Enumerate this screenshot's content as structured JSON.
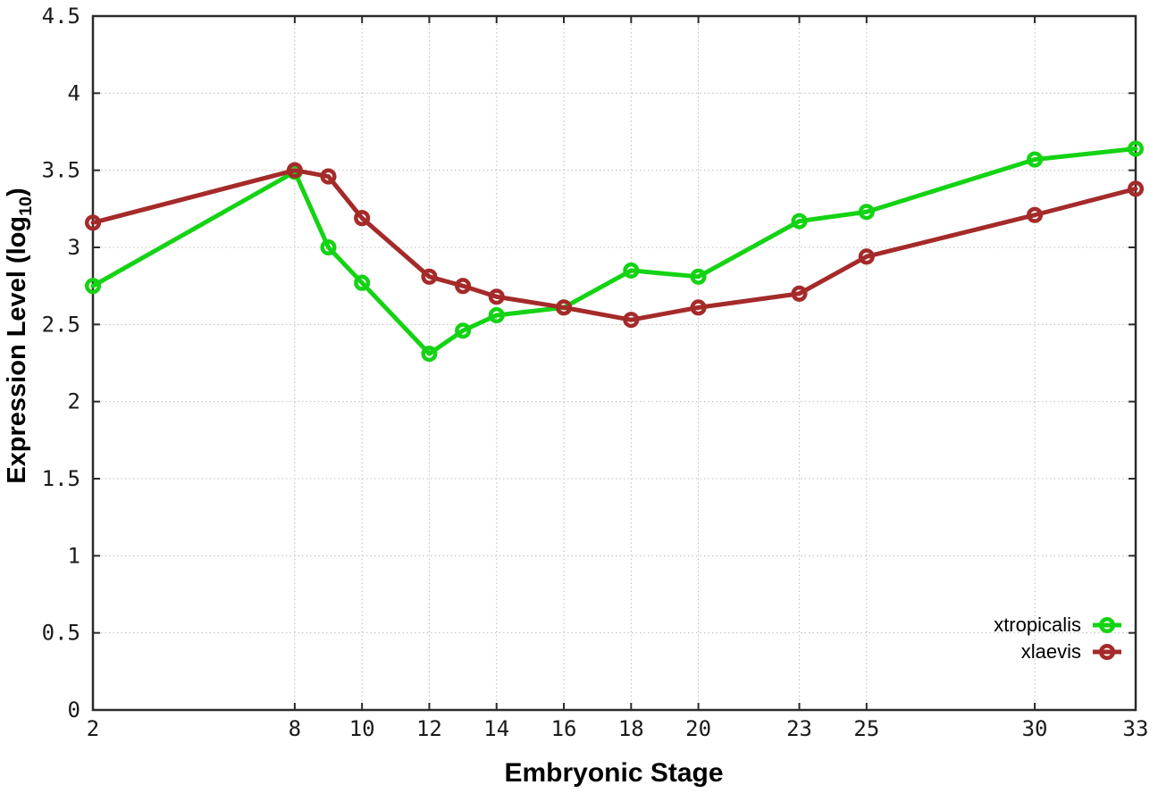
{
  "figure": {
    "background": "#ffffff",
    "border_color": "#2b2b2b",
    "grid_color": "#bcbcbc",
    "tick_label_color": "#1a1a1a"
  },
  "chart_data": {
    "type": "line",
    "xlabel": "Embryonic Stage",
    "ylabel": "Expression Level (log10)",
    "ylabel_parts": {
      "pre": "Expression Level (log",
      "sub": "10",
      "post": ")"
    },
    "x": [
      2,
      8,
      9,
      10,
      12,
      13,
      14,
      16,
      18,
      20,
      23,
      25,
      30,
      33
    ],
    "xticks": [
      2,
      8,
      10,
      12,
      14,
      16,
      18,
      20,
      23,
      25,
      30,
      33
    ],
    "xtick_labels": [
      "2",
      "8",
      "10",
      "12",
      "14",
      "16",
      "18",
      "20",
      "23",
      "25",
      "30",
      "33"
    ],
    "xlim": [
      2,
      33
    ],
    "yticks": [
      0,
      0.5,
      1,
      1.5,
      2,
      2.5,
      3,
      3.5,
      4,
      4.5
    ],
    "ytick_labels": [
      "0",
      "0.5",
      "1",
      "1.5",
      "2",
      "2.5",
      "3",
      "3.5",
      "4",
      "4.5"
    ],
    "ylim": [
      0,
      4.5
    ],
    "grid": true,
    "legend_position": "inside-bottom-right",
    "series": [
      {
        "name": "xtropicalis",
        "color": "#14d314",
        "values": [
          2.75,
          3.49,
          3.0,
          2.77,
          2.31,
          2.46,
          2.56,
          2.61,
          2.85,
          2.81,
          3.17,
          3.23,
          3.57,
          3.64
        ]
      },
      {
        "name": "xlaevis",
        "color": "#a52a2a",
        "values": [
          3.16,
          3.5,
          3.46,
          3.19,
          2.81,
          2.75,
          2.68,
          2.61,
          2.53,
          2.61,
          2.7,
          2.94,
          3.21,
          3.38
        ]
      }
    ]
  }
}
